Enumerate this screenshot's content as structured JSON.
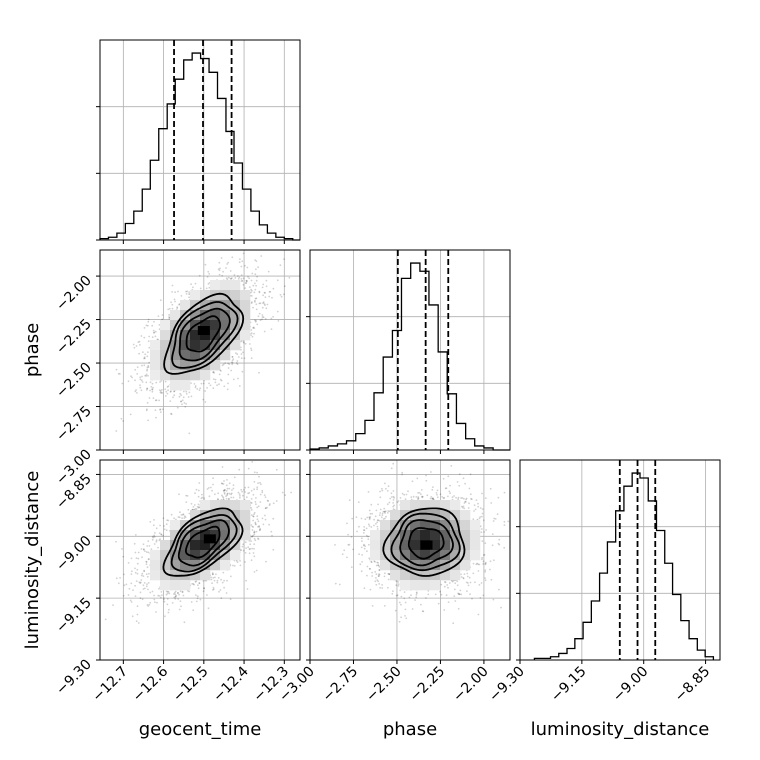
{
  "chart_data": {
    "type": "corner",
    "parameters": [
      {
        "name": "geocent_time",
        "ticks": [
          -12.7,
          -12.6,
          -12.5,
          -12.4,
          -12.3
        ],
        "tick_labels": [
          "−12.7",
          "−12.6",
          "−12.5",
          "−12.4",
          "−12.3"
        ],
        "range": [
          -12.758,
          -12.261
        ],
        "quantiles": [
          -12.574,
          -12.502,
          -12.431
        ],
        "hist_edges": [
          -12.758,
          -12.737,
          -12.716,
          -12.695,
          -12.674,
          -12.653,
          -12.633,
          -12.612,
          -12.591,
          -12.571,
          -12.55,
          -12.529,
          -12.508,
          -12.487,
          -12.466,
          -12.445,
          -12.425,
          -12.404,
          -12.383,
          -12.362,
          -12.342,
          -12.321,
          -12.3,
          -12.279,
          -12.261
        ],
        "hist_counts": [
          1,
          2,
          5,
          12,
          21,
          37,
          58,
          81,
          99,
          117,
          131,
          136,
          132,
          122,
          103,
          79,
          56,
          37,
          21,
          11,
          5,
          2,
          1,
          0
        ]
      },
      {
        "name": "phase",
        "ticks": [
          -3.0,
          -2.75,
          -2.5,
          -2.25,
          -2.0
        ],
        "tick_labels": [
          "−3.00",
          "−2.75",
          "−2.50",
          "−2.25",
          "−2.00"
        ],
        "range": [
          -3.0,
          -1.85
        ],
        "quantiles": [
          -2.495,
          -2.335,
          -2.205
        ],
        "hist_edges": [
          -3.0,
          -2.947,
          -2.895,
          -2.842,
          -2.79,
          -2.737,
          -2.684,
          -2.632,
          -2.579,
          -2.526,
          -2.474,
          -2.421,
          -2.368,
          -2.316,
          -2.263,
          -2.211,
          -2.158,
          -2.105,
          -2.053,
          -2.0,
          -1.947,
          -1.895,
          -1.85
        ],
        "hist_counts": [
          1,
          2,
          4,
          6,
          9,
          16,
          29,
          56,
          91,
          117,
          168,
          183,
          175,
          142,
          96,
          55,
          26,
          11,
          4,
          2,
          0,
          0
        ]
      },
      {
        "name": "luminosity_distance",
        "ticks": [
          -9.3,
          -9.15,
          -9.0,
          -8.85
        ],
        "tick_labels": [
          "−9.30",
          "−9.15",
          "−9.00",
          "−8.85"
        ],
        "range": [
          -9.3,
          -8.815
        ],
        "quantiles": [
          -9.058,
          -9.015,
          -8.972
        ],
        "hist_edges": [
          -9.265,
          -9.246,
          -9.226,
          -9.206,
          -9.186,
          -9.167,
          -9.147,
          -9.127,
          -9.107,
          -9.088,
          -9.068,
          -9.048,
          -9.028,
          -9.009,
          -8.989,
          -8.969,
          -8.949,
          -8.93,
          -8.91,
          -8.89,
          -8.87,
          -8.851,
          -8.831
        ],
        "hist_counts": [
          1,
          1,
          2,
          4,
          7,
          13,
          23,
          36,
          53,
          72,
          91,
          106,
          114,
          111,
          97,
          79,
          59,
          40,
          24,
          13,
          6,
          2
        ]
      }
    ],
    "pairs": [
      {
        "x": "geocent_time",
        "y": "phase",
        "mean": [
          -12.502,
          -2.335
        ],
        "std": [
          0.067,
          0.16
        ],
        "rho": 0.52,
        "peak": [
          -12.5,
          -2.31
        ]
      },
      {
        "x": "geocent_time",
        "y": "luminosity_distance",
        "mean": [
          -12.502,
          -9.015
        ],
        "std": [
          0.067,
          0.058
        ],
        "rho": 0.55,
        "peak": [
          -12.485,
          -9.005
        ]
      },
      {
        "x": "phase",
        "y": "luminosity_distance",
        "mean": [
          -2.335,
          -9.015
        ],
        "std": [
          0.16,
          0.058
        ],
        "rho": 0.05,
        "peak": [
          -2.33,
          -9.02
        ]
      }
    ],
    "contour_levels": [
      0.39,
      0.86,
      1.39,
      1.98
    ],
    "grid": true
  }
}
